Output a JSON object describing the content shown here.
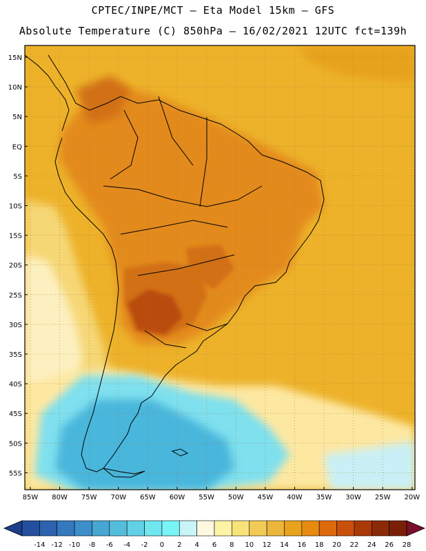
{
  "header": {
    "line1": "CPTEC/INPE/MCT –  Eta Model 15km – GFS",
    "line2": "Absolute Temperature (C) 850hPa – 16/02/2021 12UTC fct=139h"
  },
  "axes": {
    "lat_labels": [
      "15N",
      "10N",
      "5N",
      "EQ",
      "5S",
      "10S",
      "15S",
      "20S",
      "25S",
      "30S",
      "35S",
      "40S",
      "45S",
      "50S",
      "55S"
    ],
    "lon_labels": [
      "85W",
      "80W",
      "75W",
      "70W",
      "65W",
      "60W",
      "55W",
      "50W",
      "45W",
      "40W",
      "35W",
      "30W",
      "25W",
      "20W"
    ]
  },
  "colorbar": {
    "labels": [
      "-14",
      "-12",
      "-10",
      "-8",
      "-6",
      "-4",
      "-2",
      "0",
      "2",
      "4",
      "6",
      "8",
      "10",
      "12",
      "14",
      "16",
      "18",
      "20",
      "22",
      "24",
      "26",
      "28"
    ],
    "colors": [
      "#1c3f8c",
      "#234f9e",
      "#2c62ae",
      "#3478bd",
      "#3c8fc8",
      "#47a6d2",
      "#55bddc",
      "#62d1e6",
      "#70e6f0",
      "#78f4f6",
      "#c9f4f8",
      "#fff7e0",
      "#fdf3a6",
      "#f8e27a",
      "#f2cb56",
      "#ecb63c",
      "#e9a21c",
      "#e68a10",
      "#dd6a0c",
      "#c8500a",
      "#a93a08",
      "#8a2a06",
      "#7a1f06",
      "#7b0f2a"
    ]
  },
  "map": {
    "fill_colors": {
      "ocean_warm": "#edb22a",
      "hot": "#e38a1c",
      "hotter": "#d26f16",
      "hottest": "#b94c10",
      "cool": "#fde8a2",
      "cold": "#62d1e6",
      "colder": "#3f9ecf"
    }
  }
}
